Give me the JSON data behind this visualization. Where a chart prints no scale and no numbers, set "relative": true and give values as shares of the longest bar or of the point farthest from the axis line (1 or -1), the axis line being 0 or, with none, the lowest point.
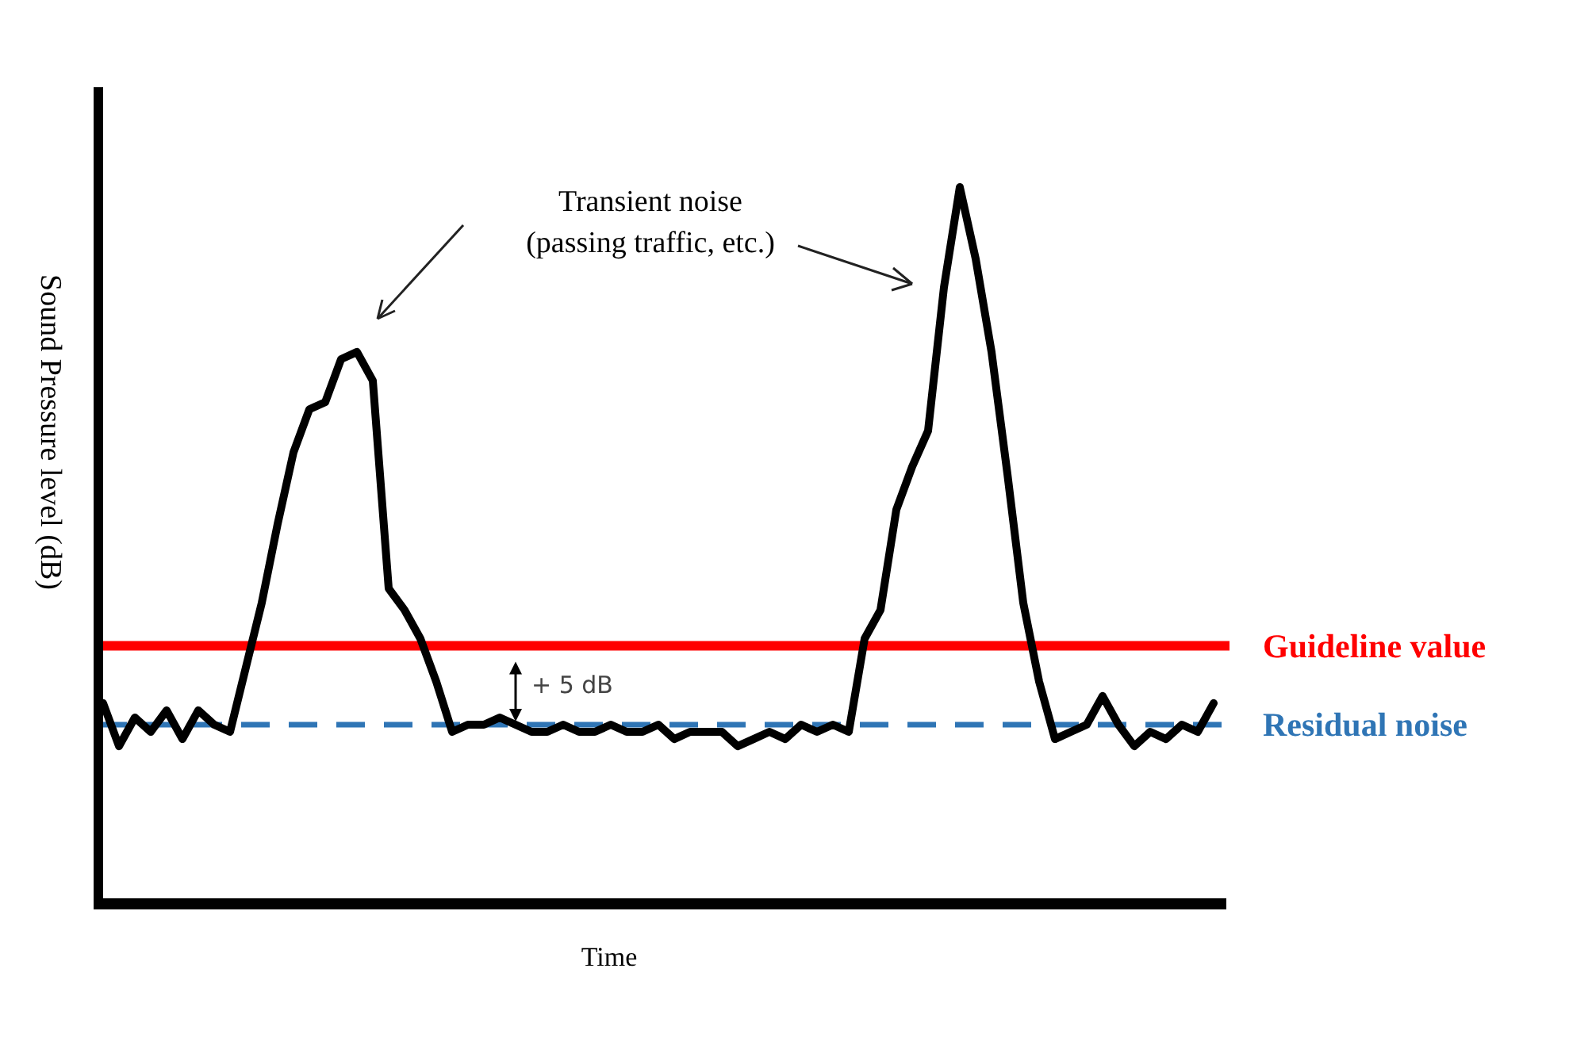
{
  "chart_data": {
    "type": "line",
    "relative": true,
    "xlabel": "Time",
    "ylabel": "Sound Pressure level (dB)",
    "categories": [
      null,
      null,
      null,
      null,
      null,
      null,
      null,
      null,
      null,
      null,
      null,
      null,
      null,
      null,
      null,
      null,
      null,
      null,
      null,
      null,
      null,
      null,
      null,
      null,
      null,
      null,
      null,
      null,
      null,
      null,
      null,
      null,
      null,
      null,
      null,
      null,
      null,
      null,
      null,
      null,
      null,
      null,
      null,
      null,
      null,
      null,
      null,
      null,
      null,
      null,
      null,
      null,
      null,
      null,
      null,
      null,
      null,
      null,
      null,
      null,
      null,
      null,
      null,
      null,
      null,
      null,
      null,
      null,
      null,
      null,
      null
    ],
    "series": [
      {
        "color": "#000000",
        "values": [
          0.28,
          0.22,
          0.26,
          0.24,
          0.27,
          0.23,
          0.27,
          0.25,
          0.24,
          0.33,
          0.42,
          0.53,
          0.63,
          0.69,
          0.7,
          0.76,
          0.77,
          0.73,
          0.44,
          0.41,
          0.37,
          0.31,
          0.24,
          0.25,
          0.25,
          0.26,
          0.25,
          0.24,
          0.24,
          0.25,
          0.24,
          0.24,
          0.25,
          0.24,
          0.24,
          0.25,
          0.23,
          0.24,
          0.24,
          0.24,
          0.22,
          0.23,
          0.24,
          0.23,
          0.25,
          0.24,
          0.25,
          0.24,
          0.37,
          0.41,
          0.55,
          0.61,
          0.66,
          0.86,
          1,
          0.9,
          0.77,
          0.6,
          0.42,
          0.31,
          0.23,
          0.24,
          0.25,
          0.29,
          0.25,
          0.22,
          0.24,
          0.23,
          0.25,
          0.24,
          0.28
        ]
      }
    ],
    "ref_lines": [
      {
        "axis": "y",
        "value": 0.36,
        "label": "Guideline value",
        "color": "#ff0000",
        "line_style": "solid"
      },
      {
        "axis": "y",
        "value": 0.25,
        "label": "Residual noise",
        "color": "#2f75b5",
        "line_style": "dashed"
      }
    ],
    "annotations": [
      "Transient noise\n(passing traffic, etc.)",
      "+ 5 dB"
    ]
  }
}
